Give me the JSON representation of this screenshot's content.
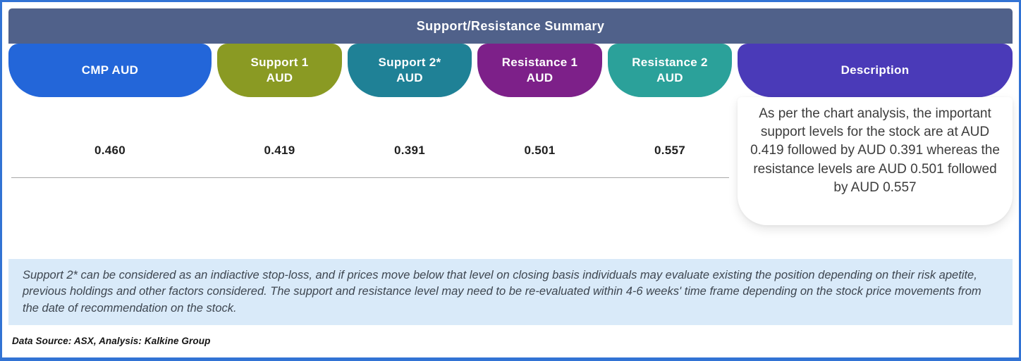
{
  "title": "Support/Resistance Summary",
  "table": {
    "columns": [
      {
        "name": "cmp",
        "label_lines": [
          "CMP AUD"
        ],
        "color": "#2366d9",
        "value": "0.460"
      },
      {
        "name": "support-1",
        "label_lines": [
          "Support 1",
          "AUD"
        ],
        "color": "#8a9a23",
        "value": "0.419"
      },
      {
        "name": "support-2",
        "label_lines": [
          "Support 2*",
          "AUD"
        ],
        "color": "#1f8196",
        "value": "0.391"
      },
      {
        "name": "resistance-1",
        "label_lines": [
          "Resistance 1",
          "AUD"
        ],
        "color": "#7d2089",
        "value": "0.501"
      },
      {
        "name": "resistance-2",
        "label_lines": [
          "Resistance 2",
          "AUD"
        ],
        "color": "#2ba19a",
        "value": "0.557"
      }
    ],
    "description_column": {
      "label": "Description",
      "color": "#4a3ab8",
      "text": "As per the chart analysis, the important support levels for the stock are at AUD 0.419 followed by AUD 0.391 whereas the resistance levels are AUD 0.501 followed by AUD 0.557"
    }
  },
  "footnote": "Support 2* can be considered as an indiactive stop-loss, and if prices move below that level on closing basis individuals may evaluate existing the position depending on their risk apetite, previous holdings and other factors considered. The support and resistance level may need to be re-evaluated within 4-6 weeks' time frame depending on the stock price movements from  the date of recommendation on the stock.",
  "data_source": "Data Source: ASX, Analysis: Kalkine Group",
  "colors": {
    "frame_border": "#3273d4",
    "header_bar": "#50618a",
    "footnote_bg": "#d9eaf9"
  }
}
